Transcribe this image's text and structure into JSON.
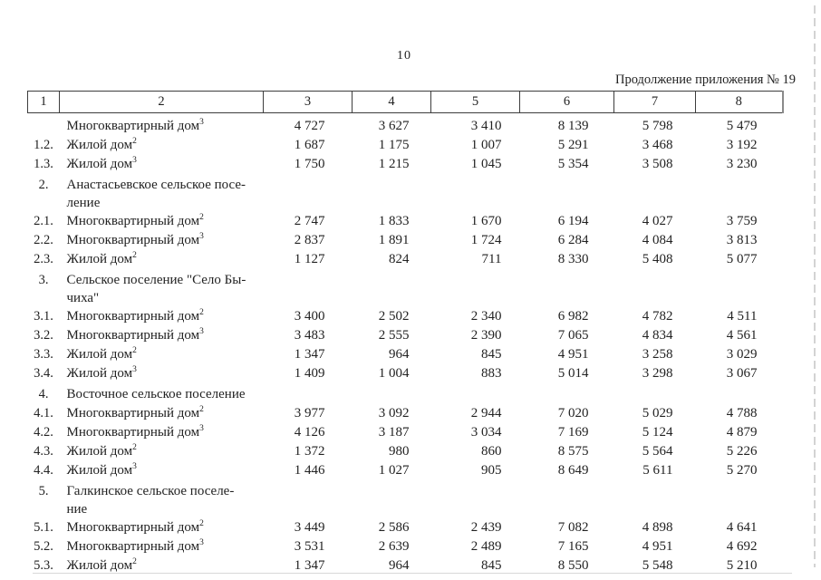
{
  "page": {
    "page_number": "10",
    "caption": "Продолжение приложения № 19"
  },
  "table": {
    "header": [
      "1",
      "2",
      "3",
      "4",
      "5",
      "6",
      "7",
      "8"
    ],
    "rows": [
      {
        "num": "",
        "label": "Многоквартирный дом",
        "sup": "3",
        "values": [
          "4 727",
          "3 627",
          "3 410",
          "8 139",
          "5 798",
          "5 479"
        ]
      },
      {
        "num": "1.2.",
        "label": "Жилой дом",
        "sup": "2",
        "values": [
          "1 687",
          "1 175",
          "1 007",
          "5 291",
          "3 468",
          "3 192"
        ]
      },
      {
        "num": "1.3.",
        "label": "Жилой дом",
        "sup": "3",
        "values": [
          "1 750",
          "1 215",
          "1 045",
          "5 354",
          "3 508",
          "3 230"
        ]
      },
      {
        "num": "2.",
        "label": "Анастасьевское сельское посе-\nление",
        "sup": "",
        "values": [
          "",
          "",
          "",
          "",
          "",
          ""
        ]
      },
      {
        "num": "2.1.",
        "label": "Многоквартирный дом",
        "sup": "2",
        "values": [
          "2 747",
          "1 833",
          "1 670",
          "6 194",
          "4 027",
          "3 759"
        ]
      },
      {
        "num": "2.2.",
        "label": "Многоквартирный дом",
        "sup": "3",
        "values": [
          "2 837",
          "1 891",
          "1 724",
          "6 284",
          "4 084",
          "3 813"
        ]
      },
      {
        "num": "2.3.",
        "label": "Жилой дом",
        "sup": "2",
        "values": [
          "1 127",
          "824",
          "711",
          "8 330",
          "5 408",
          "5 077"
        ]
      },
      {
        "num": "3.",
        "label": "Сельское поселение \"Село Бы-\nчиха\"",
        "sup": "",
        "values": [
          "",
          "",
          "",
          "",
          "",
          ""
        ]
      },
      {
        "num": "3.1.",
        "label": "Многоквартирный дом",
        "sup": "2",
        "values": [
          "3 400",
          "2 502",
          "2 340",
          "6 982",
          "4 782",
          "4 511"
        ]
      },
      {
        "num": "3.2.",
        "label": "Многоквартирный дом",
        "sup": "3",
        "values": [
          "3 483",
          "2 555",
          "2 390",
          "7 065",
          "4 834",
          "4 561"
        ]
      },
      {
        "num": "3.3.",
        "label": "Жилой дом",
        "sup": "2",
        "values": [
          "1 347",
          "964",
          "845",
          "4 951",
          "3 258",
          "3 029"
        ]
      },
      {
        "num": "3.4.",
        "label": "Жилой дом",
        "sup": "3",
        "values": [
          "1 409",
          "1 004",
          "883",
          "5 014",
          "3 298",
          "3 067"
        ]
      },
      {
        "num": "4.",
        "label": "Восточное сельское поселение",
        "sup": "",
        "values": [
          "",
          "",
          "",
          "",
          "",
          ""
        ]
      },
      {
        "num": "4.1.",
        "label": "Многоквартирный дом",
        "sup": "2",
        "values": [
          "3 977",
          "3 092",
          "2 944",
          "7 020",
          "5 029",
          "4 788"
        ]
      },
      {
        "num": "4.2.",
        "label": "Многоквартирный дом",
        "sup": "3",
        "values": [
          "4 126",
          "3 187",
          "3 034",
          "7 169",
          "5 124",
          "4 879"
        ]
      },
      {
        "num": "4.3.",
        "label": "Жилой дом",
        "sup": "2",
        "values": [
          "1 372",
          "980",
          "860",
          "8 575",
          "5 564",
          "5 226"
        ]
      },
      {
        "num": "4.4.",
        "label": "Жилой дом",
        "sup": "3",
        "values": [
          "1 446",
          "1 027",
          "905",
          "8 649",
          "5 611",
          "5 270"
        ]
      },
      {
        "num": "5.",
        "label": "Галкинское сельское поселе-\nние",
        "sup": "",
        "values": [
          "",
          "",
          "",
          "",
          "",
          ""
        ]
      },
      {
        "num": "5.1.",
        "label": "Многоквартирный дом",
        "sup": "2",
        "values": [
          "3 449",
          "2 586",
          "2 439",
          "7 082",
          "4 898",
          "4 641"
        ]
      },
      {
        "num": "5.2.",
        "label": "Многоквартирный дом",
        "sup": "3",
        "values": [
          "3 531",
          "2 639",
          "2 489",
          "7 165",
          "4 951",
          "4 692"
        ]
      },
      {
        "num": "5.3.",
        "label": "Жилой дом",
        "sup": "2",
        "values": [
          "1 347",
          "964",
          "845",
          "8 550",
          "5 548",
          "5 210"
        ]
      }
    ]
  }
}
